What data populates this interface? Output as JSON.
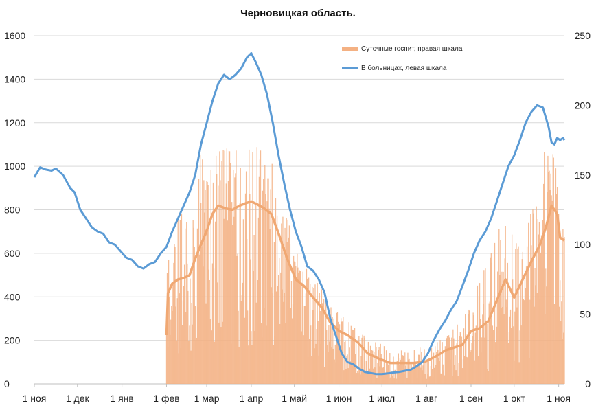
{
  "chart_data": {
    "type": "bar+line",
    "title": "Черновицкая область.",
    "x_tick_labels": [
      "1 ноя",
      "1 дек",
      "1 янв",
      "1 фев",
      "1 мар",
      "1 апр",
      "1 май",
      "1 июн",
      "1 июл",
      "1 авг",
      "1 сен",
      "1 окт",
      "1 ноя"
    ],
    "x_tick_days": [
      0,
      30,
      61,
      92,
      120,
      151,
      181,
      212,
      242,
      273,
      304,
      334,
      365
    ],
    "x_range_days": [
      0,
      369
    ],
    "y_left": {
      "min": 0,
      "max": 1600,
      "ticks": [
        0,
        200,
        400,
        600,
        800,
        1000,
        1200,
        1400,
        1600
      ]
    },
    "y_right": {
      "min": 0,
      "max": 250,
      "ticks": [
        0,
        50,
        100,
        150,
        200,
        250
      ]
    },
    "grid": true,
    "legend_position": "top-right",
    "series": [
      {
        "name": "Суточные госпит, правая шкала",
        "axis": "right",
        "kind": "bars + 7-day average",
        "color": "#f4b183",
        "avg_line_color": "#f0a873",
        "days": [
          92,
          93,
          96,
          100,
          104,
          108,
          112,
          116,
          120,
          124,
          128,
          133,
          138,
          143,
          148,
          151,
          155,
          160,
          165,
          170,
          176,
          182,
          188,
          194,
          200,
          206,
          212,
          218,
          225,
          232,
          240,
          248,
          256,
          264,
          272,
          280,
          286,
          292,
          298,
          304,
          310,
          316,
          322,
          328,
          334,
          340,
          346,
          352,
          356,
          360,
          364,
          366,
          369
        ],
        "avg": [
          35,
          65,
          72,
          75,
          76,
          78,
          90,
          100,
          110,
          122,
          128,
          126,
          125,
          128,
          130,
          131,
          129,
          126,
          122,
          108,
          90,
          75,
          70,
          62,
          55,
          44,
          38,
          35,
          30,
          22,
          18,
          15,
          15,
          15,
          16,
          20,
          24,
          26,
          28,
          38,
          40,
          45,
          60,
          75,
          62,
          75,
          88,
          100,
          112,
          128,
          122,
          105,
          103
        ],
        "peaks": [
          90,
          90,
          95,
          120,
          125,
          130,
          160,
          165,
          170,
          170,
          170,
          170,
          165,
          170,
          175,
          175,
          170,
          165,
          160,
          140,
          120,
          95,
          85,
          75,
          70,
          55,
          55,
          45,
          40,
          35,
          30,
          25,
          25,
          25,
          28,
          30,
          35,
          40,
          50,
          60,
          75,
          95,
          110,
          125,
          105,
          120,
          140,
          160,
          175,
          170,
          150,
          100,
          120
        ]
      },
      {
        "name": "В больницах, левая шкала",
        "axis": "left",
        "kind": "line",
        "color": "#5b9bd5",
        "days": [
          0,
          4,
          8,
          12,
          15,
          20,
          25,
          28,
          32,
          36,
          40,
          44,
          48,
          52,
          56,
          60,
          64,
          68,
          72,
          76,
          80,
          84,
          88,
          92,
          96,
          100,
          104,
          108,
          112,
          116,
          120,
          124,
          128,
          132,
          136,
          140,
          144,
          148,
          151,
          154,
          158,
          162,
          166,
          170,
          174,
          178,
          182,
          186,
          190,
          194,
          198,
          202,
          206,
          210,
          214,
          218,
          222,
          226,
          230,
          234,
          238,
          242,
          246,
          250,
          254,
          258,
          262,
          266,
          270,
          274,
          278,
          282,
          286,
          290,
          294,
          298,
          302,
          306,
          310,
          314,
          318,
          322,
          326,
          330,
          334,
          338,
          342,
          346,
          350,
          354,
          358,
          360,
          362,
          364,
          366,
          368,
          369
        ],
        "values": [
          950,
          995,
          985,
          980,
          990,
          960,
          900,
          880,
          800,
          760,
          720,
          700,
          690,
          650,
          640,
          610,
          580,
          570,
          540,
          530,
          550,
          560,
          600,
          630,
          700,
          760,
          820,
          880,
          960,
          1100,
          1200,
          1300,
          1380,
          1420,
          1400,
          1420,
          1450,
          1500,
          1520,
          1480,
          1420,
          1330,
          1200,
          1050,
          920,
          800,
          700,
          630,
          540,
          520,
          480,
          420,
          300,
          220,
          140,
          100,
          90,
          70,
          55,
          50,
          45,
          45,
          48,
          52,
          55,
          60,
          65,
          80,
          100,
          140,
          200,
          250,
          290,
          340,
          380,
          450,
          520,
          600,
          660,
          700,
          760,
          840,
          920,
          1000,
          1050,
          1120,
          1200,
          1250,
          1280,
          1270,
          1180,
          1110,
          1100,
          1130,
          1120,
          1130,
          1120
        ]
      }
    ]
  }
}
